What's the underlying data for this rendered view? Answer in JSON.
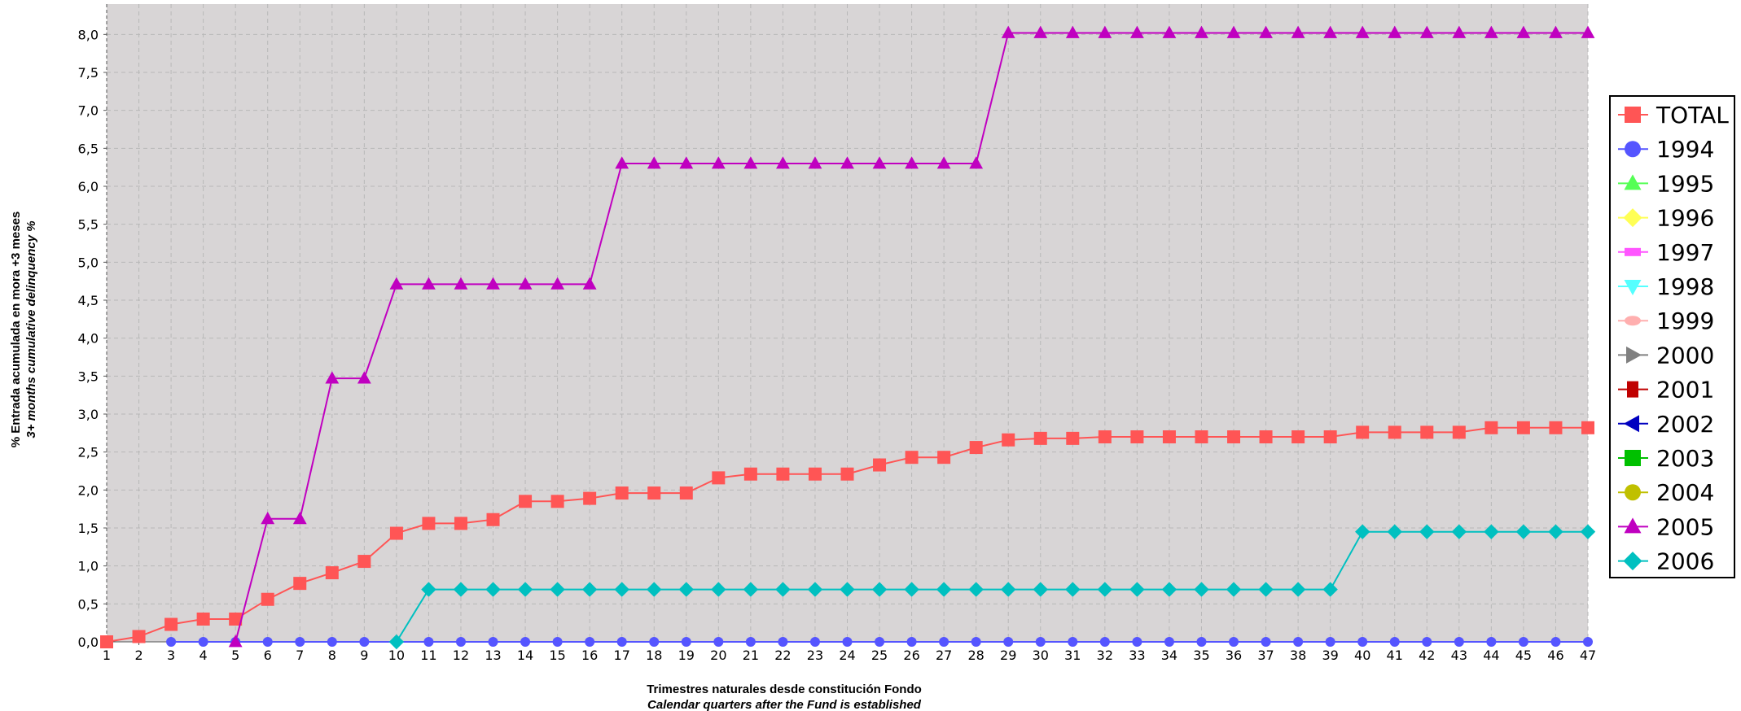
{
  "chart_data": {
    "type": "line",
    "xlabel": "Trimestres naturales desde constitución Fondo",
    "xlabel_secondary": "Calendar quarters after the Fund is established",
    "ylabel": "% Entrada acumulada en mora +3 meses",
    "ylabel_secondary": "3+ months cumulative delinquency %",
    "x": [
      1,
      2,
      3,
      4,
      5,
      6,
      7,
      8,
      9,
      10,
      11,
      12,
      13,
      14,
      15,
      16,
      17,
      18,
      19,
      20,
      21,
      22,
      23,
      24,
      25,
      26,
      27,
      28,
      29,
      30,
      31,
      32,
      33,
      34,
      35,
      36,
      37,
      38,
      39,
      40,
      41,
      42,
      43,
      44,
      45,
      46,
      47
    ],
    "xlim": [
      1,
      47
    ],
    "ylim": [
      0,
      8.4
    ],
    "yticks": [
      "0,0",
      "0,5",
      "1,0",
      "1,5",
      "2,0",
      "2,5",
      "3,0",
      "3,5",
      "4,0",
      "4,5",
      "5,0",
      "5,5",
      "6,0",
      "6,5",
      "7,0",
      "7,5",
      "8,0"
    ],
    "grid": true,
    "legend_position": "right",
    "series": [
      {
        "name": "TOTAL",
        "color": "#ff5555",
        "marker": "square",
        "x": [
          1,
          2,
          3,
          4,
          5,
          6,
          7,
          8,
          9,
          10,
          11,
          12,
          13,
          14,
          15,
          16,
          17,
          18,
          19,
          20,
          21,
          22,
          23,
          24,
          25,
          26,
          27,
          28,
          29,
          30,
          31,
          32,
          33,
          34,
          35,
          36,
          37,
          38,
          39,
          40,
          41,
          42,
          43,
          44,
          45,
          46,
          47
        ],
        "values": [
          0,
          0.07,
          0.23,
          0.3,
          0.3,
          0.56,
          0.77,
          0.91,
          1.06,
          1.43,
          1.56,
          1.56,
          1.61,
          1.85,
          1.85,
          1.89,
          1.96,
          1.96,
          1.96,
          2.16,
          2.21,
          2.21,
          2.21,
          2.21,
          2.33,
          2.43,
          2.43,
          2.56,
          2.66,
          2.68,
          2.68,
          2.7,
          2.7,
          2.7,
          2.7,
          2.7,
          2.7,
          2.7,
          2.7,
          2.76,
          2.76,
          2.76,
          2.76,
          2.82,
          2.82,
          2.82,
          2.82
        ]
      },
      {
        "name": "1994",
        "color": "#5555ff",
        "marker": "circle",
        "x": [
          3,
          4,
          5,
          6,
          7,
          8,
          9,
          10,
          11,
          12,
          13,
          14,
          15,
          16,
          17,
          18,
          19,
          20,
          21,
          22,
          23,
          24,
          25,
          26,
          27,
          28,
          29,
          30,
          31,
          32,
          33,
          34,
          35,
          36,
          37,
          38,
          39,
          40,
          41,
          42,
          43,
          44,
          45,
          46,
          47
        ],
        "values": [
          0,
          0,
          0,
          0,
          0,
          0,
          0,
          0,
          0,
          0,
          0,
          0,
          0,
          0,
          0,
          0,
          0,
          0,
          0,
          0,
          0,
          0,
          0,
          0,
          0,
          0,
          0,
          0,
          0,
          0,
          0,
          0,
          0,
          0,
          0,
          0,
          0,
          0,
          0,
          0,
          0,
          0,
          0,
          0,
          0
        ]
      },
      {
        "name": "1995",
        "color": "#55ff55",
        "marker": "triangle-up",
        "x": [],
        "values": []
      },
      {
        "name": "1996",
        "color": "#ffff55",
        "marker": "diamond",
        "x": [],
        "values": []
      },
      {
        "name": "1997",
        "color": "#ff55ff",
        "marker": "rect",
        "x": [],
        "values": []
      },
      {
        "name": "1998",
        "color": "#55ffff",
        "marker": "triangle-down",
        "x": [],
        "values": []
      },
      {
        "name": "1999",
        "color": "#ffafaf",
        "marker": "ellipse",
        "x": [],
        "values": []
      },
      {
        "name": "2000",
        "color": "#808080",
        "marker": "triangle-right",
        "x": [],
        "values": []
      },
      {
        "name": "2001",
        "color": "#c00000",
        "marker": "small-square",
        "x": [],
        "values": []
      },
      {
        "name": "2002",
        "color": "#0000c0",
        "marker": "triangle-left",
        "x": [],
        "values": []
      },
      {
        "name": "2003",
        "color": "#00c000",
        "marker": "square",
        "x": [],
        "values": []
      },
      {
        "name": "2004",
        "color": "#c0c000",
        "marker": "circle",
        "x": [],
        "values": []
      },
      {
        "name": "2005",
        "color": "#c000c0",
        "marker": "triangle-up",
        "x": [
          5,
          6,
          7,
          8,
          9,
          10,
          11,
          12,
          13,
          14,
          15,
          16,
          17,
          18,
          19,
          20,
          21,
          22,
          23,
          24,
          25,
          26,
          27,
          28,
          29,
          30,
          31,
          32,
          33,
          34,
          35,
          36,
          37,
          38,
          39,
          40,
          41,
          42,
          43,
          44,
          45,
          46,
          47
        ],
        "values": [
          0,
          1.62,
          1.62,
          3.47,
          3.47,
          4.71,
          4.71,
          4.71,
          4.71,
          4.71,
          4.71,
          4.71,
          6.3,
          6.3,
          6.3,
          6.3,
          6.3,
          6.3,
          6.3,
          6.3,
          6.3,
          6.3,
          6.3,
          6.3,
          8.02,
          8.02,
          8.02,
          8.02,
          8.02,
          8.02,
          8.02,
          8.02,
          8.02,
          8.02,
          8.02,
          8.02,
          8.02,
          8.02,
          8.02,
          8.02,
          8.02,
          8.02,
          8.02
        ]
      },
      {
        "name": "2006",
        "color": "#00c0c0",
        "marker": "diamond",
        "x": [
          10,
          11,
          12,
          13,
          14,
          15,
          16,
          17,
          18,
          19,
          20,
          21,
          22,
          23,
          24,
          25,
          26,
          27,
          28,
          29,
          30,
          31,
          32,
          33,
          34,
          35,
          36,
          37,
          38,
          39,
          40,
          41,
          42,
          43,
          44,
          45,
          46,
          47
        ],
        "values": [
          0,
          0.69,
          0.69,
          0.69,
          0.69,
          0.69,
          0.69,
          0.69,
          0.69,
          0.69,
          0.69,
          0.69,
          0.69,
          0.69,
          0.69,
          0.69,
          0.69,
          0.69,
          0.69,
          0.69,
          0.69,
          0.69,
          0.69,
          0.69,
          0.69,
          0.69,
          0.69,
          0.69,
          0.69,
          0.69,
          1.45,
          1.45,
          1.45,
          1.45,
          1.45,
          1.45,
          1.45,
          1.45
        ]
      }
    ]
  }
}
